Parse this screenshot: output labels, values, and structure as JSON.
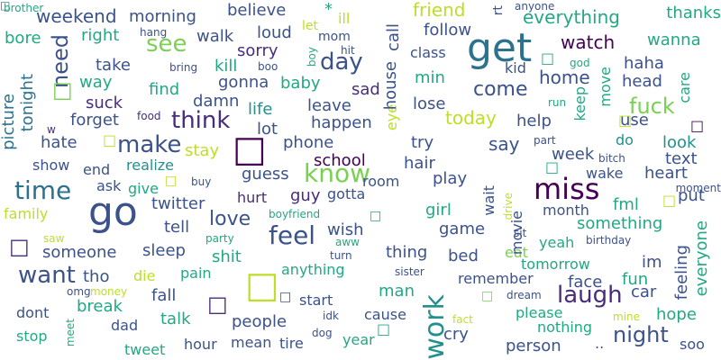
{
  "cloud": {
    "words": [
      {
        "text": "get",
        "color": "#2c728e"
      },
      {
        "text": "go",
        "color": "#3b528b"
      },
      {
        "text": "miss",
        "color": "#440154"
      },
      {
        "text": "know",
        "color": "#7ad151"
      },
      {
        "text": "feel",
        "color": "#3b528b"
      },
      {
        "text": "work",
        "color": "#21918c"
      },
      {
        "text": "think",
        "color": "#472d7b"
      },
      {
        "text": "time",
        "color": "#2c728e"
      },
      {
        "text": "want",
        "color": "#3b528b"
      },
      {
        "text": "day",
        "color": "#3b528b"
      },
      {
        "text": "make",
        "color": "#3b528b"
      },
      {
        "text": "see",
        "color": "#7ad151"
      },
      {
        "text": "love",
        "color": "#3b528b"
      },
      {
        "text": "laugh",
        "color": "#472d7b"
      },
      {
        "text": "need",
        "color": "#3b528b"
      },
      {
        "text": "come",
        "color": "#3b528b"
      },
      {
        "text": "fuck",
        "color": "#7ad151"
      },
      {
        "text": "night",
        "color": "#3b528b"
      },
      {
        "text": "today",
        "color": "#bddf26"
      },
      {
        "text": "say",
        "color": "#3b528b"
      },
      {
        "text": "home",
        "color": "#3b528b"
      },
      {
        "text": "watch",
        "color": "#440154"
      },
      {
        "text": "weekend",
        "color": "#3b528b"
      },
      {
        "text": "friend",
        "color": "#bddf26"
      },
      {
        "text": "everything",
        "color": "#22a884"
      },
      {
        "text": "morning",
        "color": "#3b528b"
      },
      {
        "text": "believe",
        "color": "#3b528b"
      },
      {
        "text": "follow",
        "color": "#3b528b"
      },
      {
        "text": "loud",
        "color": "#3b528b"
      },
      {
        "text": "sorry",
        "color": "#472d7b"
      },
      {
        "text": "walk",
        "color": "#3b528b"
      },
      {
        "text": "bore",
        "color": "#22a884"
      },
      {
        "text": "right",
        "color": "#22a884"
      },
      {
        "text": "take",
        "color": "#3b528b"
      },
      {
        "text": "way",
        "color": "#22a884"
      },
      {
        "text": "gonna",
        "color": "#3b528b"
      },
      {
        "text": "kill",
        "color": "#22a884"
      },
      {
        "text": "baby",
        "color": "#22a884"
      },
      {
        "text": "sad",
        "color": "#472d7b"
      },
      {
        "text": "min",
        "color": "#22a884"
      },
      {
        "text": "kid",
        "color": "#3b528b"
      },
      {
        "text": "haha",
        "color": "#3b528b"
      },
      {
        "text": "head",
        "color": "#3b528b"
      },
      {
        "text": "wanna",
        "color": "#22a884"
      },
      {
        "text": "thanks",
        "color": "#22a884"
      },
      {
        "text": "picture",
        "color": "#2c728e"
      },
      {
        "text": "tonight",
        "color": "#2c728e"
      },
      {
        "text": "find",
        "color": "#22a884"
      },
      {
        "text": "suck",
        "color": "#472d7b"
      },
      {
        "text": "damn",
        "color": "#3b528b"
      },
      {
        "text": "forget",
        "color": "#3b528b"
      },
      {
        "text": "life",
        "color": "#21918c"
      },
      {
        "text": "leave",
        "color": "#3b528b"
      },
      {
        "text": "lose",
        "color": "#3b528b"
      },
      {
        "text": "happen",
        "color": "#3b528b"
      },
      {
        "text": "lot",
        "color": "#3b528b"
      },
      {
        "text": "help",
        "color": "#3b528b"
      },
      {
        "text": "use",
        "color": "#3b528b"
      },
      {
        "text": "hate",
        "color": "#3b528b"
      },
      {
        "text": "phone",
        "color": "#3b528b"
      },
      {
        "text": "stay",
        "color": "#bddf26"
      },
      {
        "text": "school",
        "color": "#440154"
      },
      {
        "text": "try",
        "color": "#3b528b"
      },
      {
        "text": "look",
        "color": "#21918c"
      },
      {
        "text": "week",
        "color": "#3b528b"
      },
      {
        "text": "text",
        "color": "#3b528b"
      },
      {
        "text": "do",
        "color": "#21918c"
      },
      {
        "text": "show",
        "color": "#3b528b"
      },
      {
        "text": "realize",
        "color": "#21918c"
      },
      {
        "text": "end",
        "color": "#3b528b"
      },
      {
        "text": "guess",
        "color": "#3b528b"
      },
      {
        "text": "hair",
        "color": "#3b528b"
      },
      {
        "text": "play",
        "color": "#3b528b"
      },
      {
        "text": "wake",
        "color": "#3b528b"
      },
      {
        "text": "heart",
        "color": "#3b528b"
      },
      {
        "text": "ask",
        "color": "#3b528b"
      },
      {
        "text": "give",
        "color": "#22a884"
      },
      {
        "text": "twitter",
        "color": "#3b528b"
      },
      {
        "text": "hurt",
        "color": "#472d7b"
      },
      {
        "text": "guy",
        "color": "#472d7b"
      },
      {
        "text": "gotta",
        "color": "#3b528b"
      },
      {
        "text": "room",
        "color": "#3b528b"
      },
      {
        "text": "fml",
        "color": "#22a884"
      },
      {
        "text": "put",
        "color": "#3b528b"
      },
      {
        "text": "family",
        "color": "#bddf26"
      },
      {
        "text": "tell",
        "color": "#3b528b"
      },
      {
        "text": "wish",
        "color": "#3b528b"
      },
      {
        "text": "girl",
        "color": "#22a884"
      },
      {
        "text": "month",
        "color": "#3b528b"
      },
      {
        "text": "something",
        "color": "#22a884"
      },
      {
        "text": "sleep",
        "color": "#3b528b"
      },
      {
        "text": "someone",
        "color": "#3b528b"
      },
      {
        "text": "shit",
        "color": "#22a884"
      },
      {
        "text": "game",
        "color": "#3b528b"
      },
      {
        "text": "yeah",
        "color": "#22a884"
      },
      {
        "text": "bed",
        "color": "#3b528b"
      },
      {
        "text": "thing",
        "color": "#3b528b"
      },
      {
        "text": "im",
        "color": "#3b528b"
      },
      {
        "text": "eat",
        "color": "#7ad151"
      },
      {
        "text": "anything",
        "color": "#22a884"
      },
      {
        "text": "tomorrow",
        "color": "#22a884"
      },
      {
        "text": "remember",
        "color": "#3b528b"
      },
      {
        "text": "face",
        "color": "#3b528b"
      },
      {
        "text": "fun",
        "color": "#22a884"
      },
      {
        "text": "tho",
        "color": "#3b528b"
      },
      {
        "text": "die",
        "color": "#bddf26"
      },
      {
        "text": "pain",
        "color": "#22a884"
      },
      {
        "text": "fall",
        "color": "#3b528b"
      },
      {
        "text": "car",
        "color": "#3b528b"
      },
      {
        "text": "man",
        "color": "#22a884"
      },
      {
        "text": "start",
        "color": "#3b528b"
      },
      {
        "text": "break",
        "color": "#22a884"
      },
      {
        "text": "dont",
        "color": "#3b528b"
      },
      {
        "text": "dad",
        "color": "#3b528b"
      },
      {
        "text": "talk",
        "color": "#22a884"
      },
      {
        "text": "people",
        "color": "#3b528b"
      },
      {
        "text": "cause",
        "color": "#3b528b"
      },
      {
        "text": "please",
        "color": "#22a884"
      },
      {
        "text": "hope",
        "color": "#22a884"
      },
      {
        "text": "nothing",
        "color": "#22a884"
      },
      {
        "text": "cry",
        "color": "#3b528b"
      },
      {
        "text": "stop",
        "color": "#22a884"
      },
      {
        "text": "tweet",
        "color": "#22a884"
      },
      {
        "text": "hour",
        "color": "#3b528b"
      },
      {
        "text": "mean",
        "color": "#3b528b"
      },
      {
        "text": "tire",
        "color": "#3b528b"
      },
      {
        "text": "year",
        "color": "#22a884"
      },
      {
        "text": "person",
        "color": "#3b528b"
      },
      {
        "text": "soo",
        "color": "#3b528b"
      },
      {
        "text": "feeling",
        "color": "#3b528b"
      },
      {
        "text": "everyone",
        "color": "#22a884"
      },
      {
        "text": "movie",
        "color": "#3b528b"
      },
      {
        "text": "wait",
        "color": "#3b528b"
      },
      {
        "text": "eye",
        "color": "#bddf26"
      },
      {
        "text": "house",
        "color": "#3b528b"
      },
      {
        "text": "call",
        "color": "#3b528b"
      },
      {
        "text": "keep",
        "color": "#22a884"
      },
      {
        "text": "move",
        "color": "#22a884"
      },
      {
        "text": "care",
        "color": "#22a884"
      },
      {
        "text": "class",
        "color": "#3b528b"
      },
      {
        "text": "ill",
        "color": "#bddf26"
      },
      {
        "text": "mom",
        "color": "#3b528b"
      },
      {
        "text": "let",
        "color": "#bddf26"
      },
      {
        "text": "hit",
        "color": "#3b528b"
      },
      {
        "text": "rt",
        "color": "#3b528b"
      },
      {
        "text": "boy",
        "color": "#22a884"
      },
      {
        "text": "brother",
        "color": "#22a884"
      },
      {
        "text": "hang",
        "color": "#3b528b"
      },
      {
        "text": "bring",
        "color": "#3b528b"
      },
      {
        "text": "boo",
        "color": "#3b528b"
      },
      {
        "text": "food",
        "color": "#472d7b"
      },
      {
        "text": "w",
        "color": "#472d7b"
      },
      {
        "text": "anyone",
        "color": "#3b528b"
      },
      {
        "text": "god",
        "color": "#22a884"
      },
      {
        "text": "run",
        "color": "#22a884"
      },
      {
        "text": "part",
        "color": "#3b528b"
      },
      {
        "text": "bitch",
        "color": "#3b528b"
      },
      {
        "text": "moment",
        "color": "#3b528b"
      },
      {
        "text": "buy",
        "color": "#3b528b"
      },
      {
        "text": "boyfriend",
        "color": "#22a884"
      },
      {
        "text": "drive",
        "color": "#bddf26"
      },
      {
        "text": "sit",
        "color": "#3b528b"
      },
      {
        "text": "birthday",
        "color": "#3b528b"
      },
      {
        "text": "saw",
        "color": "#bddf26"
      },
      {
        "text": "party",
        "color": "#22a884"
      },
      {
        "text": "aww",
        "color": "#22a884"
      },
      {
        "text": "turn",
        "color": "#3b528b"
      },
      {
        "text": "sister",
        "color": "#3b528b"
      },
      {
        "text": "omg",
        "color": "#3b528b"
      },
      {
        "text": "money",
        "color": "#bddf26"
      },
      {
        "text": "idk",
        "color": "#3b528b"
      },
      {
        "text": "dream",
        "color": "#3b528b"
      },
      {
        "text": "fact",
        "color": "#bddf26"
      },
      {
        "text": "mine",
        "color": "#bddf26"
      },
      {
        "text": "dog",
        "color": "#3b528b"
      },
      {
        "text": "meet",
        "color": "#22a884"
      },
      {
        "text": "..",
        "color": "#3b528b"
      },
      {
        "text": "*",
        "color": "#22a884"
      },
      {
        "text": "□",
        "color": "#22a884"
      },
      {
        "text": "□",
        "color": "#7ad151"
      },
      {
        "text": "□",
        "color": "#bddf26"
      },
      {
        "text": "□",
        "color": "#440154"
      },
      {
        "text": "□",
        "color": "#472d7b"
      },
      {
        "text": "□",
        "color": "#bddf26"
      },
      {
        "text": "□",
        "color": "#22a884"
      },
      {
        "text": "□",
        "color": "#bddf26"
      },
      {
        "text": "□",
        "color": "#472d7b"
      },
      {
        "text": "□",
        "color": "#3b528b"
      },
      {
        "text": "□",
        "color": "#7ad151"
      },
      {
        "text": "□",
        "color": "#22a884"
      },
      {
        "text": "□",
        "color": "#bddf26"
      },
      {
        "text": "□",
        "color": "#440154"
      },
      {
        "text": "□",
        "color": "#22a884"
      },
      {
        "text": "□",
        "color": "#bddf26"
      },
      {
        "text": "□",
        "color": "#472d7b"
      },
      {
        "text": "□",
        "color": "#22a884"
      }
    ]
  }
}
